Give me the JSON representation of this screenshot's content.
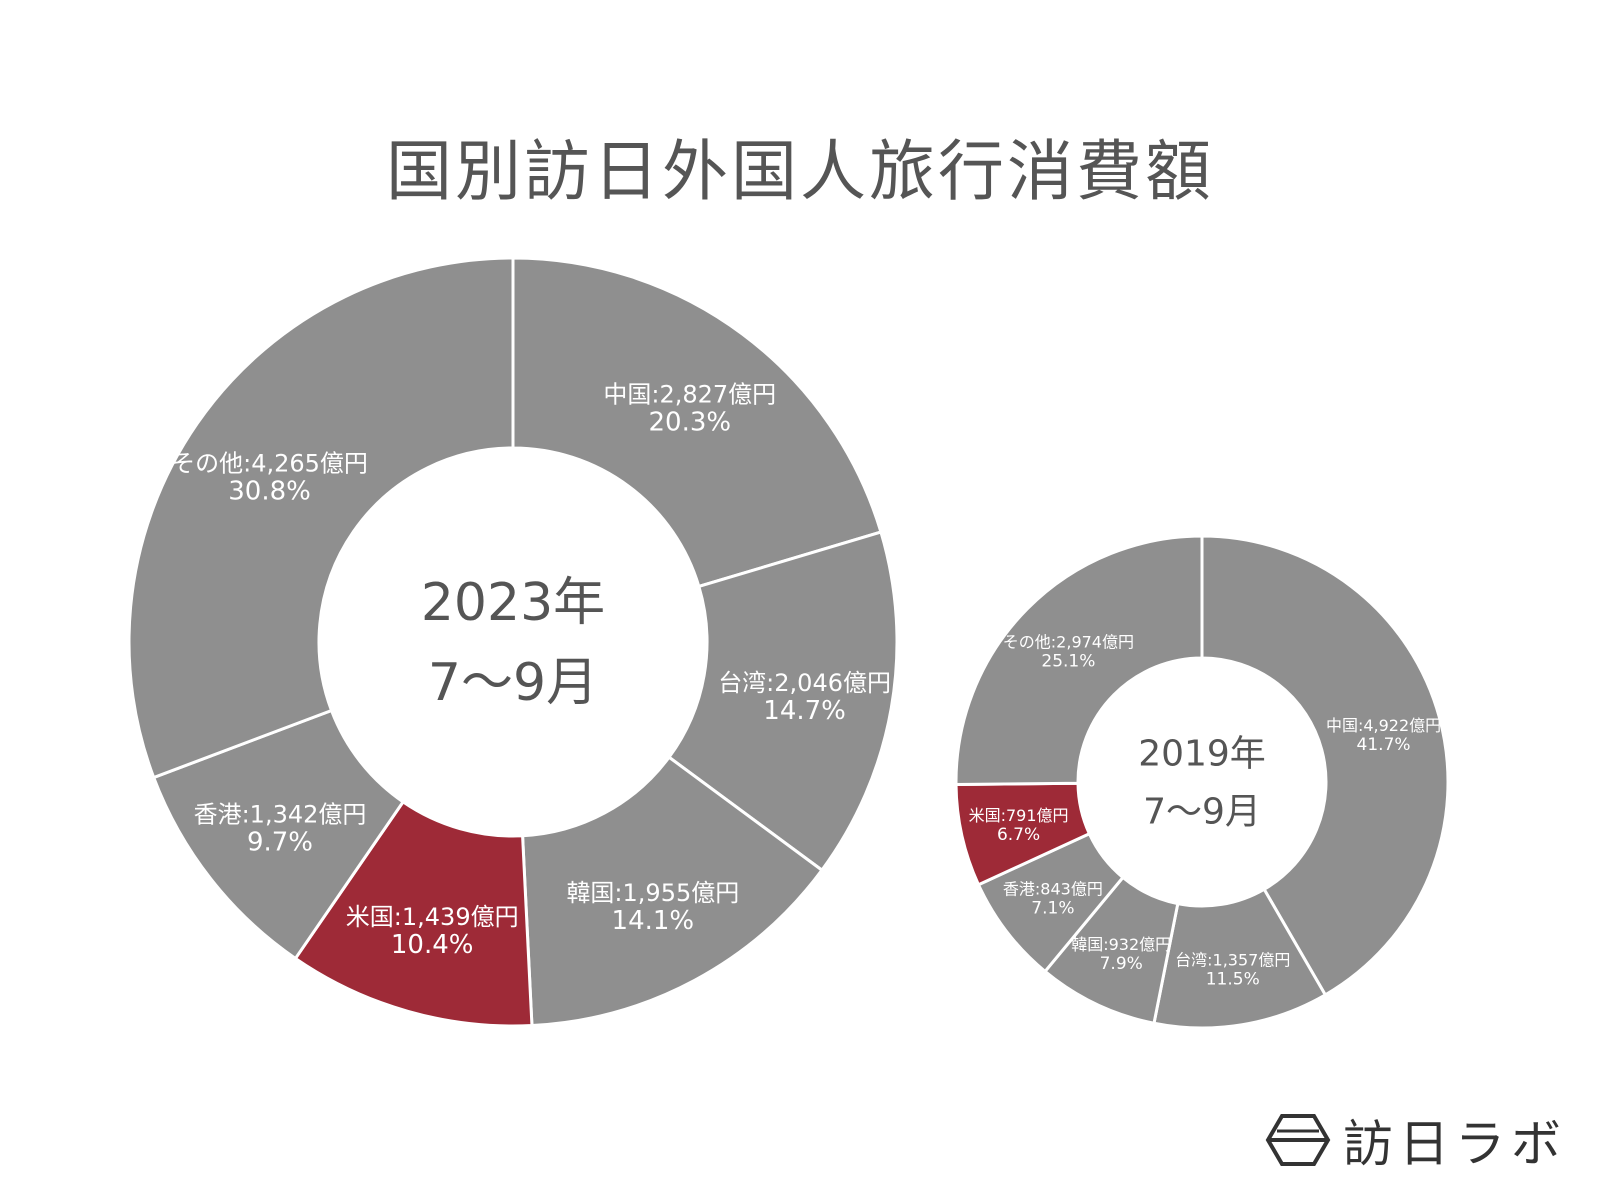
{
  "title": "国別訪日外国人旅行消費額",
  "brand": {
    "name": "訪日ラボ",
    "icon": "hexagon-logo-icon"
  },
  "colors": {
    "slice": "#8f8f8f",
    "highlight": "#9e2a37",
    "divider": "#ffffff",
    "text": "#555555"
  },
  "chart_data": [
    {
      "type": "pie",
      "variant": "donut",
      "center_label": [
        "2023年",
        "7〜9月"
      ],
      "unit": "億円",
      "slices": [
        {
          "name": "中国",
          "value": 2827,
          "percent": 20.3,
          "label": "中国:2,827億円",
          "pct_label": "20.3%"
        },
        {
          "name": "台湾",
          "value": 2046,
          "percent": 14.7,
          "label": "台湾:2,046億円",
          "pct_label": "14.7%"
        },
        {
          "name": "韓国",
          "value": 1955,
          "percent": 14.1,
          "label": "韓国:1,955億円",
          "pct_label": "14.1%"
        },
        {
          "name": "米国",
          "value": 1439,
          "percent": 10.4,
          "label": "米国:1,439億円",
          "pct_label": "10.4%",
          "highlight": true
        },
        {
          "name": "香港",
          "value": 1342,
          "percent": 9.7,
          "label": "香港:1,342億円",
          "pct_label": "9.7%"
        },
        {
          "name": "その他",
          "value": 4265,
          "percent": 30.8,
          "label": "その他:4,265億円",
          "pct_label": "30.8%"
        }
      ]
    },
    {
      "type": "pie",
      "variant": "donut",
      "center_label": [
        "2019年",
        "7〜9月"
      ],
      "unit": "億円",
      "slices": [
        {
          "name": "中国",
          "value": 4922,
          "percent": 41.7,
          "label": "中国:4,922億円",
          "pct_label": "41.7%"
        },
        {
          "name": "台湾",
          "value": 1357,
          "percent": 11.5,
          "label": "台湾:1,357億円",
          "pct_label": "11.5%"
        },
        {
          "name": "韓国",
          "value": 932,
          "percent": 7.9,
          "label": "韓国:932億円",
          "pct_label": "7.9%"
        },
        {
          "name": "香港",
          "value": 843,
          "percent": 7.1,
          "label": "香港:843億円",
          "pct_label": "7.1%"
        },
        {
          "name": "米国",
          "value": 791,
          "percent": 6.7,
          "label": "米国:791億円",
          "pct_label": "6.7%",
          "highlight": true
        },
        {
          "name": "その他",
          "value": 2974,
          "percent": 25.1,
          "label": "その他:2,974億円",
          "pct_label": "25.1%"
        }
      ]
    }
  ]
}
